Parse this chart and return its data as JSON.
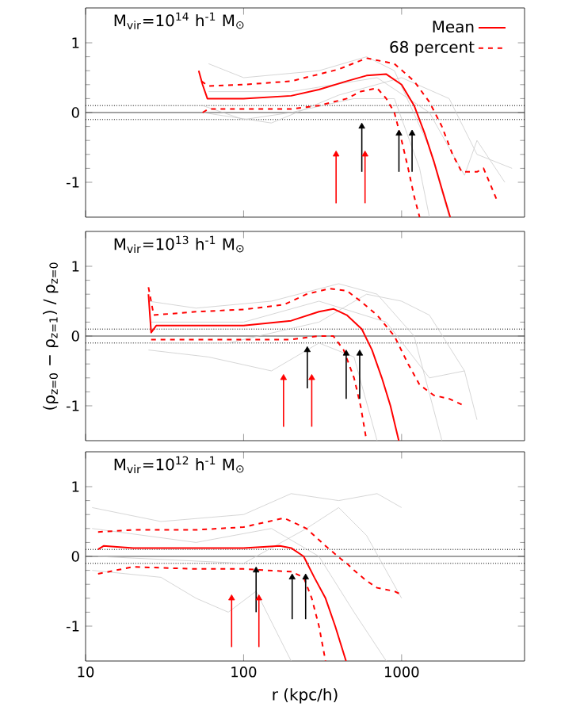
{
  "chart_data": [
    {
      "type": "line",
      "title": "M$_{vir}$=10$^{14}$ h$^{-1}$ M$_{⊙}$",
      "xlim": [
        10,
        6000
      ],
      "ylim": [
        -1.5,
        1.5
      ],
      "xticks": [
        10,
        100,
        1000
      ],
      "yticks": [
        -1,
        0,
        1
      ],
      "log": "x",
      "tick_labels": "y",
      "legend": "top right",
      "ref_lines": [
        {
          "axis": "y",
          "value": 0,
          "line_style": "solid",
          "color": "#444444"
        },
        {
          "axis": "y",
          "value": 0.1,
          "line_style": "dotted",
          "color": "#000000"
        },
        {
          "axis": "y",
          "value": -0.1,
          "line_style": "dotted",
          "color": "#000000"
        }
      ],
      "series": [
        {
          "color": "#cccccc",
          "x": [
            60,
            100,
            300,
            600,
            900,
            1500,
            2000
          ],
          "values": [
            0.7,
            0.5,
            0.6,
            0.8,
            0.6,
            -0.5,
            -1.5
          ]
        },
        {
          "color": "#cccccc",
          "x": [
            55,
            100,
            200,
            500,
            900,
            1300,
            1500
          ],
          "values": [
            0.1,
            -0.1,
            0.0,
            0.2,
            0.2,
            -0.8,
            -1.5
          ]
        },
        {
          "color": "#cccccc",
          "x": [
            60,
            200,
            700,
            1500,
            2500,
            3000,
            4500
          ],
          "values": [
            0.3,
            0.3,
            0.5,
            0.0,
            -0.9,
            -0.4,
            -1.0
          ]
        },
        {
          "color": "#cccccc",
          "x": [
            55,
            150,
            400,
            1000,
            2000,
            3000,
            5000
          ],
          "values": [
            0.0,
            -0.15,
            0.25,
            0.5,
            0.2,
            -0.6,
            -0.8
          ]
        },
        {
          "name": "Mean",
          "color": "#ff0000",
          "line_style": "solid",
          "x": [
            52,
            55,
            59,
            100,
            200,
            300,
            450,
            600,
            800,
            1000,
            1200,
            1400,
            1600,
            1800,
            2030
          ],
          "values": [
            0.6,
            0.4,
            0.2,
            0.2,
            0.24,
            0.33,
            0.45,
            0.53,
            0.55,
            0.4,
            0.1,
            -0.3,
            -0.7,
            -1.1,
            -1.5
          ]
        },
        {
          "name": "68 percent",
          "color": "#ff0000",
          "line_style": "dashed",
          "x": [
            54,
            60,
            100,
            200,
            400,
            600,
            900,
            1200,
            1500,
            1800,
            2100,
            2400,
            3000,
            3300,
            3600,
            4000
          ],
          "values": [
            0.45,
            0.38,
            0.4,
            0.45,
            0.62,
            0.78,
            0.7,
            0.45,
            0.15,
            -0.2,
            -0.6,
            -0.85,
            -0.85,
            -0.8,
            -1.0,
            -1.25
          ]
        },
        {
          "color": "#ff0000",
          "line_style": "dashed",
          "x": [
            55,
            60,
            100,
            200,
            300,
            450,
            550,
            700,
            800,
            900,
            1000,
            1100,
            1200,
            1300
          ],
          "values": [
            0.0,
            0.05,
            0.05,
            0.05,
            0.1,
            0.2,
            0.3,
            0.35,
            0.2,
            0.0,
            -0.4,
            -0.8,
            -1.2,
            -1.5
          ]
        },
        {
          "type": "scatter",
          "marker": "triangle",
          "color": "#ff0000",
          "x": [
            385,
            587
          ],
          "values": [
            -0.6,
            -0.6
          ],
          "errors": [
            [
              -1.3,
              -0.6
            ],
            [
              -1.3,
              -0.6
            ]
          ]
        },
        {
          "type": "scatter",
          "marker": "triangle",
          "color": "#000000",
          "x": [
            560,
            962,
            1165
          ],
          "values": [
            -0.2,
            -0.3,
            -0.3
          ],
          "errors": [
            [
              -0.85,
              -0.2
            ],
            [
              -0.85,
              -0.3
            ],
            [
              -0.85,
              -0.3
            ]
          ]
        }
      ]
    },
    {
      "type": "line",
      "title": "M$_{vir}$=10$^{13}$ h$^{-1}$ M$_{⊙}$",
      "ylabel": "(ρ$_{z=0}$ − ρ$_{z=1}$) / ρ$_{z=0}$",
      "xlim": [
        10,
        6000
      ],
      "ylim": [
        -1.5,
        1.5
      ],
      "xticks": [
        10,
        100,
        1000
      ],
      "yticks": [
        -1,
        0,
        1
      ],
      "log": "x",
      "tick_labels": "y",
      "ref_lines": [
        {
          "axis": "y",
          "value": 0,
          "line_style": "solid",
          "color": "#444444"
        },
        {
          "axis": "y",
          "value": 0.1,
          "line_style": "dotted",
          "color": "#000000"
        },
        {
          "axis": "y",
          "value": -0.1,
          "line_style": "dotted",
          "color": "#000000"
        }
      ],
      "series": [
        {
          "color": "#cccccc",
          "x": [
            25,
            50,
            150,
            400,
            700,
            1200,
            1800
          ],
          "values": [
            0.5,
            0.4,
            0.5,
            0.75,
            0.6,
            0.0,
            -1.5
          ]
        },
        {
          "color": "#cccccc",
          "x": [
            25,
            60,
            150,
            300,
            500,
            700
          ],
          "values": [
            -0.2,
            -0.3,
            -0.5,
            -0.1,
            -0.3,
            -1.5
          ]
        },
        {
          "color": "#cccccc",
          "x": [
            26,
            100,
            300,
            800,
            1500,
            2500,
            3000
          ],
          "values": [
            0.2,
            0.2,
            0.5,
            0.2,
            -0.6,
            -0.5,
            -1.2
          ]
        },
        {
          "color": "#cccccc",
          "x": [
            26,
            80,
            300,
            600,
            1000,
            1500,
            2500
          ],
          "values": [
            -0.1,
            -0.1,
            0.2,
            0.6,
            0.5,
            0.3,
            -0.5
          ]
        },
        {
          "color": "#ff0000",
          "line_style": "solid",
          "x": [
            25,
            26,
            28,
            50,
            100,
            200,
            300,
            370,
            450,
            560,
            650,
            750,
            850,
            960
          ],
          "values": [
            0.6,
            0.05,
            0.15,
            0.15,
            0.15,
            0.22,
            0.35,
            0.39,
            0.3,
            0.1,
            -0.2,
            -0.6,
            -1.0,
            -1.5
          ]
        },
        {
          "color": "#ff0000",
          "line_style": "dashed",
          "x": [
            25,
            27,
            50,
            100,
            180,
            250,
            350,
            450,
            550,
            700,
            900,
            1100,
            1300,
            1600,
            2000,
            2500
          ],
          "values": [
            0.7,
            0.3,
            0.35,
            0.38,
            0.45,
            0.6,
            0.68,
            0.65,
            0.5,
            0.3,
            0.0,
            -0.4,
            -0.7,
            -0.85,
            -0.9,
            -1.0
          ]
        },
        {
          "color": "#ff0000",
          "line_style": "dashed",
          "x": [
            26,
            50,
            100,
            200,
            300,
            370,
            430,
            500,
            550,
            600
          ],
          "values": [
            -0.05,
            -0.05,
            -0.05,
            -0.05,
            0.0,
            0.0,
            -0.2,
            -0.6,
            -1.0,
            -1.5
          ]
        },
        {
          "type": "scatter",
          "marker": "triangle",
          "color": "#ff0000",
          "x": [
            179,
            270
          ],
          "values": [
            -0.6,
            -0.6
          ],
          "errors": [
            [
              -1.3,
              -0.6
            ],
            [
              -1.3,
              -0.6
            ]
          ]
        },
        {
          "type": "scatter",
          "marker": "triangle",
          "color": "#000000",
          "x": [
            253,
            446,
            543
          ],
          "values": [
            -0.2,
            -0.25,
            -0.25
          ],
          "errors": [
            [
              -0.75,
              -0.2
            ],
            [
              -0.9,
              -0.25
            ],
            [
              -0.9,
              -0.25
            ]
          ]
        }
      ]
    },
    {
      "type": "line",
      "title": "M$_{vir}$=10$^{12}$ h$^{-1}$ M$_{⊙}$",
      "xlabel": "r (kpc/h)",
      "xlim": [
        10,
        6000
      ],
      "ylim": [
        -1.5,
        1.5
      ],
      "xticks": [
        10,
        100,
        1000
      ],
      "yticks": [
        -1,
        0,
        1
      ],
      "log": "x",
      "ref_lines": [
        {
          "axis": "y",
          "value": 0,
          "line_style": "solid",
          "color": "#444444"
        },
        {
          "axis": "y",
          "value": 0.1,
          "line_style": "dotted",
          "color": "#000000"
        },
        {
          "axis": "y",
          "value": -0.1,
          "line_style": "dotted",
          "color": "#000000"
        }
      ],
      "series": [
        {
          "color": "#cccccc",
          "x": [
            11,
            30,
            100,
            200,
            400,
            700,
            1000
          ],
          "values": [
            0.7,
            0.5,
            0.6,
            0.9,
            0.8,
            0.9,
            0.7
          ]
        },
        {
          "color": "#cccccc",
          "x": [
            11,
            30,
            50,
            80,
            120,
            200
          ],
          "values": [
            -0.2,
            -0.3,
            -0.6,
            -0.8,
            -0.5,
            -1.5
          ]
        },
        {
          "color": "#cccccc",
          "x": [
            11,
            50,
            150,
            300,
            500,
            800
          ],
          "values": [
            0.4,
            0.2,
            0.4,
            0.0,
            -0.8,
            -1.5
          ]
        },
        {
          "color": "#cccccc",
          "x": [
            12,
            100,
            250,
            400,
            600,
            1000
          ],
          "values": [
            0.0,
            -0.1,
            0.4,
            0.7,
            0.3,
            -0.6
          ]
        },
        {
          "color": "#ff0000",
          "line_style": "solid",
          "x": [
            12,
            13,
            20,
            50,
            100,
            170,
            200,
            240,
            280,
            330,
            380,
            445
          ],
          "values": [
            0.1,
            0.15,
            0.12,
            0.12,
            0.12,
            0.15,
            0.12,
            0.0,
            -0.3,
            -0.6,
            -1.0,
            -1.5
          ]
        },
        {
          "color": "#ff0000",
          "line_style": "dashed",
          "x": [
            12,
            20,
            50,
            100,
            180,
            250,
            330,
            420,
            450,
            500,
            600,
            700,
            900,
            1000
          ],
          "values": [
            0.35,
            0.38,
            0.38,
            0.42,
            0.55,
            0.4,
            0.15,
            -0.05,
            -0.1,
            -0.2,
            -0.35,
            -0.45,
            -0.5,
            -0.55
          ]
        },
        {
          "color": "#ff0000",
          "line_style": "dashed",
          "x": [
            12,
            20,
            50,
            100,
            200,
            240,
            270,
            300,
            330
          ],
          "values": [
            -0.25,
            -0.15,
            -0.18,
            -0.18,
            -0.22,
            -0.3,
            -0.6,
            -1.0,
            -1.5
          ]
        },
        {
          "type": "scatter",
          "marker": "triangle",
          "color": "#ff0000",
          "x": [
            84,
            125
          ],
          "values": [
            -0.6,
            -0.6
          ],
          "errors": [
            [
              -1.3,
              -0.6
            ],
            [
              -1.3,
              -0.6
            ]
          ]
        },
        {
          "type": "scatter",
          "marker": "triangle",
          "color": "#000000",
          "x": [
            120,
            203,
            247
          ],
          "values": [
            -0.2,
            -0.3,
            -0.3
          ],
          "errors": [
            [
              -0.8,
              -0.2
            ],
            [
              -0.9,
              -0.3
            ],
            [
              -0.9,
              -0.3
            ]
          ]
        }
      ]
    }
  ]
}
